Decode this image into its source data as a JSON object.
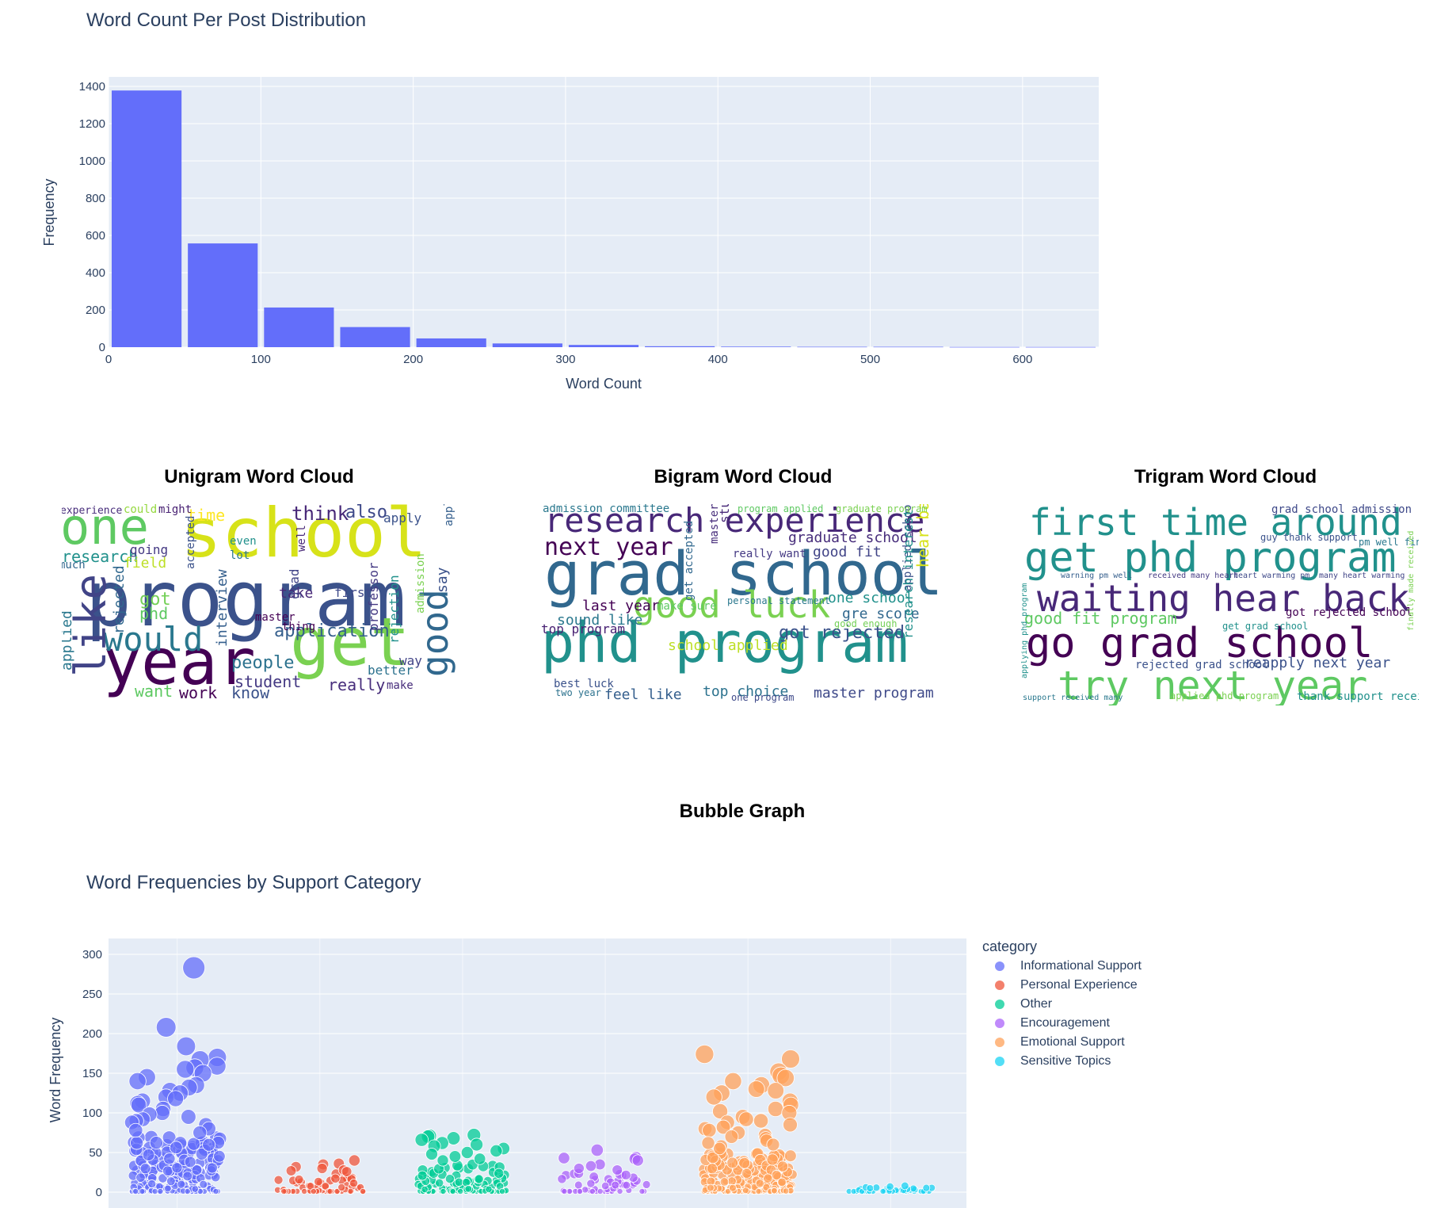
{
  "histogram": {
    "title": "Word Count Per Post Distribution",
    "chart_data": {
      "type": "bar",
      "title": "Word Count Per Post Distribution",
      "xlabel": "Word Count",
      "ylabel": "Frequency",
      "bin_width": 50,
      "xlim": [
        0,
        650
      ],
      "ylim": [
        0,
        1400
      ],
      "bins": [
        {
          "x0": 0,
          "x1": 50,
          "value": 1378
        },
        {
          "x0": 50,
          "x1": 100,
          "value": 557
        },
        {
          "x0": 100,
          "x1": 150,
          "value": 213
        },
        {
          "x0": 150,
          "x1": 200,
          "value": 108
        },
        {
          "x0": 200,
          "x1": 250,
          "value": 47
        },
        {
          "x0": 250,
          "x1": 300,
          "value": 20
        },
        {
          "x0": 300,
          "x1": 350,
          "value": 12
        },
        {
          "x0": 350,
          "x1": 400,
          "value": 5
        },
        {
          "x0": 400,
          "x1": 450,
          "value": 3
        },
        {
          "x0": 450,
          "x1": 500,
          "value": 2
        },
        {
          "x0": 500,
          "x1": 550,
          "value": 2
        },
        {
          "x0": 550,
          "x1": 600,
          "value": 1
        },
        {
          "x0": 600,
          "x1": 650,
          "value": 1
        }
      ],
      "xticks": [
        0,
        100,
        200,
        300,
        400,
        500,
        600
      ],
      "yticks": [
        0,
        200,
        400,
        600,
        800,
        1000,
        1200,
        1400
      ],
      "bar_color": "#636efa",
      "plot_bg": "#e5ecf6",
      "grid": true
    }
  },
  "clouds": {
    "unigram_title": "Unigram Word Cloud",
    "bigram_title": "Bigram Word Cloud",
    "trigram_title": "Trigram Word Cloud",
    "unigram_words": [
      {
        "t": "program",
        "c": "#3b528b"
      },
      {
        "t": "school",
        "c": "#d7e219"
      },
      {
        "t": "one",
        "c": "#5ec962"
      },
      {
        "t": "year",
        "c": "#440154"
      },
      {
        "t": "get",
        "c": "#7ad151"
      },
      {
        "t": "would",
        "c": "#2a788e"
      },
      {
        "t": "like",
        "c": "#414487"
      },
      {
        "t": "good",
        "c": "#31688e"
      },
      {
        "t": "research",
        "c": "#21918c"
      },
      {
        "t": "application",
        "c": "#355f8d"
      },
      {
        "t": "think",
        "c": "#482878"
      },
      {
        "t": "also",
        "c": "#3e4989"
      },
      {
        "t": "people",
        "c": "#2c728e"
      },
      {
        "t": "student",
        "c": "#443983"
      },
      {
        "t": "really",
        "c": "#472d7b"
      },
      {
        "t": "want",
        "c": "#5ec962"
      },
      {
        "t": "work",
        "c": "#440154"
      },
      {
        "t": "know",
        "c": "#3b528b"
      },
      {
        "t": "time",
        "c": "#fde725"
      },
      {
        "t": "experience",
        "c": "#472d7b"
      },
      {
        "t": "could",
        "c": "#95d840"
      },
      {
        "t": "might",
        "c": "#482173"
      },
      {
        "t": "field",
        "c": "#bddf26"
      },
      {
        "t": "got",
        "c": "#73d056"
      },
      {
        "t": "phd",
        "c": "#5ec962"
      },
      {
        "t": "applied",
        "c": "#2a788e"
      },
      {
        "t": "rejected",
        "c": "#31688e"
      },
      {
        "t": "accepted",
        "c": "#3b528b"
      },
      {
        "t": "interview",
        "c": "#355f8d"
      },
      {
        "t": "professor",
        "c": "#443983"
      },
      {
        "t": "rejection",
        "c": "#21918c"
      },
      {
        "t": "master",
        "c": "#440154"
      },
      {
        "t": "take",
        "c": "#482878"
      },
      {
        "t": "first",
        "c": "#3e4989"
      },
      {
        "t": "better",
        "c": "#2c728e"
      },
      {
        "t": "way",
        "c": "#414487"
      },
      {
        "t": "make",
        "c": "#472d7b"
      },
      {
        "t": "apply",
        "c": "#3b528b"
      },
      {
        "t": "well",
        "c": "#482878"
      },
      {
        "t": "even",
        "c": "#21918c"
      },
      {
        "t": "lot",
        "c": "#2a788e"
      },
      {
        "t": "going",
        "c": "#443983"
      },
      {
        "t": "much",
        "c": "#31688e"
      },
      {
        "t": "thing",
        "c": "#440154"
      },
      {
        "t": "say",
        "c": "#3b528b"
      },
      {
        "t": "applying",
        "c": "#355f8d"
      },
      {
        "t": "admission",
        "c": "#7ad151"
      },
      {
        "t": "grad",
        "c": "#414487"
      }
    ],
    "bigram_words": [
      {
        "t": "grad school",
        "c": "#31688e"
      },
      {
        "t": "phd program",
        "c": "#21918c"
      },
      {
        "t": "research experience",
        "c": "#482878"
      },
      {
        "t": "good luck",
        "c": "#7ad151"
      },
      {
        "t": "next year",
        "c": "#440154"
      },
      {
        "t": "graduate school",
        "c": "#472d7b"
      },
      {
        "t": "got rejected",
        "c": "#3b528b"
      },
      {
        "t": "master program",
        "c": "#3e4989"
      },
      {
        "t": "last year",
        "c": "#440154"
      },
      {
        "t": "top program",
        "c": "#482173"
      },
      {
        "t": "sound like",
        "c": "#2a788e"
      },
      {
        "t": "feel like",
        "c": "#355f8d"
      },
      {
        "t": "top choice",
        "c": "#2c728e"
      },
      {
        "t": "one school",
        "c": "#21918c"
      },
      {
        "t": "gre score",
        "c": "#31688e"
      },
      {
        "t": "school applied",
        "c": "#bddf26"
      },
      {
        "t": "admission committee",
        "c": "#2a788e"
      },
      {
        "t": "good fit",
        "c": "#414487"
      },
      {
        "t": "make sure",
        "c": "#5ec962"
      },
      {
        "t": "really want",
        "c": "#443983"
      },
      {
        "t": "best luck",
        "c": "#3b528b"
      },
      {
        "t": "two year",
        "c": "#2c728e"
      },
      {
        "t": "hear back",
        "c": "#d7e219"
      },
      {
        "t": "applied school",
        "c": "#3b528b"
      },
      {
        "t": "program applied",
        "c": "#5ec962"
      },
      {
        "t": "graduate program",
        "c": "#7ad151"
      },
      {
        "t": "personal statement",
        "c": "#2a788e"
      },
      {
        "t": "good enough",
        "c": "#73d056"
      },
      {
        "t": "one program",
        "c": "#3e4989"
      },
      {
        "t": "research interest",
        "c": "#21918c"
      },
      {
        "t": "master degree",
        "c": "#472d7b"
      },
      {
        "t": "get accepted",
        "c": "#31688e"
      },
      {
        "t": "student",
        "c": "#482878"
      }
    ],
    "trigram_words": [
      {
        "t": "go grad school",
        "c": "#440154"
      },
      {
        "t": "get phd program",
        "c": "#21918c"
      },
      {
        "t": "try next year",
        "c": "#5ec962"
      },
      {
        "t": "waiting hear back",
        "c": "#482878"
      },
      {
        "t": "first time around",
        "c": "#21918c"
      },
      {
        "t": "good fit program",
        "c": "#5ec962"
      },
      {
        "t": "got rejected school",
        "c": "#440154"
      },
      {
        "t": "reapply next year",
        "c": "#3b528b"
      },
      {
        "t": "grad school admission",
        "c": "#3e4989"
      },
      {
        "t": "guy thank support",
        "c": "#3b528b"
      },
      {
        "t": "pm well finally",
        "c": "#2a788e"
      },
      {
        "t": "get grad school",
        "c": "#21918c"
      },
      {
        "t": "rejected grad school",
        "c": "#3b528b"
      },
      {
        "t": "applied phd program",
        "c": "#7ad151"
      },
      {
        "t": "thank support received",
        "c": "#21918c"
      },
      {
        "t": "support received many",
        "c": "#2a788e"
      },
      {
        "t": "warning pm well",
        "c": "#355f8d"
      },
      {
        "t": "received many heart",
        "c": "#443983"
      },
      {
        "t": "heart warming pm",
        "c": "#3e4989"
      },
      {
        "t": "many heart warming",
        "c": "#414487"
      },
      {
        "t": "finally made received",
        "c": "#7ad151"
      },
      {
        "t": "applying phd program",
        "c": "#21918c"
      }
    ]
  },
  "bubble": {
    "section_title": "Bubble Graph",
    "title": "Word Frequencies by Support Category",
    "chart_data": {
      "type": "scatter",
      "title": "Word Frequencies by Support Category",
      "xlabel": "",
      "ylabel": "Word Frequency",
      "ylim": [
        -20,
        320
      ],
      "yticks": [
        0,
        50,
        100,
        150,
        200,
        250,
        300
      ],
      "legend_title": "category",
      "legend_position": "right",
      "plot_bg": "#e5ecf6",
      "series": [
        {
          "name": "Informational Support",
          "color": "#636efa",
          "n": 200,
          "typical_max": 70,
          "notable_values": [
            283,
            208,
            184,
            170,
            167,
            159,
            157,
            155,
            150,
            145,
            140,
            135,
            132,
            128,
            125,
            120,
            118,
            115,
            112,
            110,
            105,
            100,
            98,
            95,
            92,
            90,
            88,
            85,
            80,
            78,
            75
          ]
        },
        {
          "name": "Personal Experience",
          "color": "#ef553b",
          "n": 60,
          "typical_max": 25,
          "notable_values": [
            40,
            36,
            35,
            32,
            30,
            28,
            27,
            26
          ]
        },
        {
          "name": "Other",
          "color": "#00cc96",
          "n": 110,
          "typical_max": 35,
          "notable_values": [
            72,
            71,
            70,
            68,
            66,
            62,
            60,
            58,
            55,
            52,
            50,
            48,
            45,
            42,
            40
          ]
        },
        {
          "name": "Encouragement",
          "color": "#ab63fa",
          "n": 60,
          "typical_max": 25,
          "notable_values": [
            53,
            44,
            43,
            42,
            40,
            35,
            33,
            30,
            28
          ]
        },
        {
          "name": "Emotional Support",
          "color": "#ffa15a",
          "n": 230,
          "typical_max": 50,
          "notable_values": [
            174,
            168,
            152,
            147,
            144,
            140,
            135,
            130,
            128,
            125,
            120,
            115,
            110,
            105,
            102,
            100,
            95,
            92,
            90,
            88,
            85,
            82,
            80,
            78,
            75,
            72,
            70,
            68,
            65,
            62,
            60,
            58,
            55
          ]
        },
        {
          "name": "Sensitive Topics",
          "color": "#19d3f3",
          "n": 45,
          "typical_max": 6,
          "notable_values": [
            8,
            7,
            6,
            5
          ]
        }
      ]
    }
  }
}
